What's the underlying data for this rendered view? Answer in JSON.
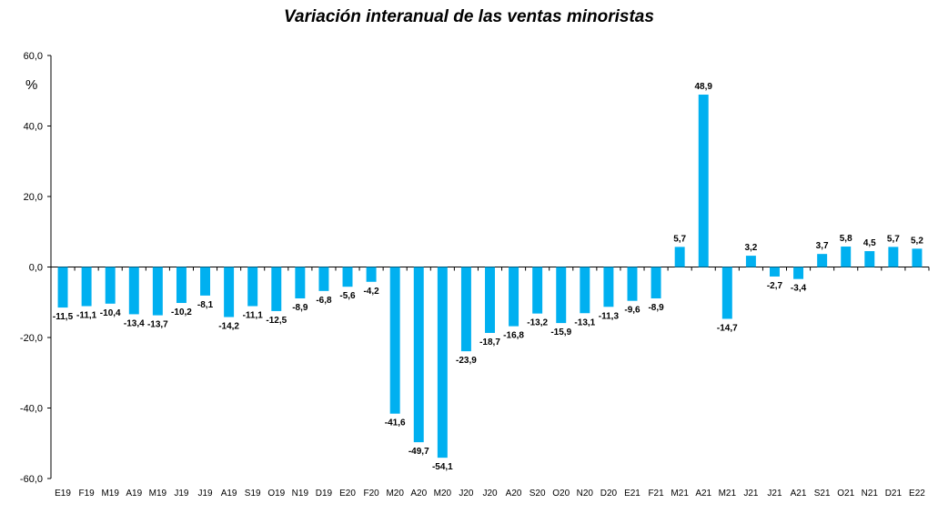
{
  "chart_data": {
    "type": "bar",
    "title": "Variación interanual de las ventas minoristas",
    "ylabel": "%",
    "xlabel": "",
    "ylim": [
      -60,
      60
    ],
    "yticks": [
      "60,0",
      "40,0",
      "20,0",
      "0,0",
      "-20,0",
      "-40,0",
      "-60,0"
    ],
    "ytick_values": [
      60,
      40,
      20,
      0,
      -20,
      -40,
      -60
    ],
    "grid": false,
    "legend": "none",
    "bar_color": "#00B0F0",
    "categories": [
      "E19",
      "F19",
      "M19",
      "A19",
      "M19",
      "J19",
      "J19",
      "A19",
      "S19",
      "O19",
      "N19",
      "D19",
      "E20",
      "F20",
      "M20",
      "A20",
      "M20",
      "J20",
      "J20",
      "A20",
      "S20",
      "O20",
      "N20",
      "D20",
      "E21",
      "F21",
      "M21",
      "A21",
      "M21",
      "J21",
      "J21",
      "A21",
      "S21",
      "O21",
      "N21",
      "D21",
      "E22"
    ],
    "values": [
      -11.5,
      -11.1,
      -10.4,
      -13.4,
      -13.7,
      -10.2,
      -8.1,
      -14.2,
      -11.1,
      -12.5,
      -8.9,
      -6.8,
      -5.6,
      -4.2,
      -41.6,
      -49.7,
      -54.1,
      -23.9,
      -18.7,
      -16.8,
      -13.2,
      -15.9,
      -13.1,
      -11.3,
      -9.6,
      -8.9,
      5.7,
      48.9,
      -14.7,
      3.2,
      -2.7,
      -3.4,
      3.7,
      5.8,
      4.5,
      5.7,
      5.2
    ],
    "value_labels": [
      "-11,5",
      "-11,1",
      "-10,4",
      "-13,4",
      "-13,7",
      "-10,2",
      "-8,1",
      "-14,2",
      "-11,1",
      "-12,5",
      "-8,9",
      "-6,8",
      "-5,6",
      "-4,2",
      "-41,6",
      "-49,7",
      "-54,1",
      "-23,9",
      "-18,7",
      "-16,8",
      "-13,2",
      "-15,9",
      "-13,1",
      "-11,3",
      "-9,6",
      "-8,9",
      "5,7",
      "48,9",
      "-14,7",
      "3,2",
      "-2,7",
      "-3,4",
      "3,7",
      "5,8",
      "4,5",
      "5,7",
      "5,2"
    ]
  }
}
